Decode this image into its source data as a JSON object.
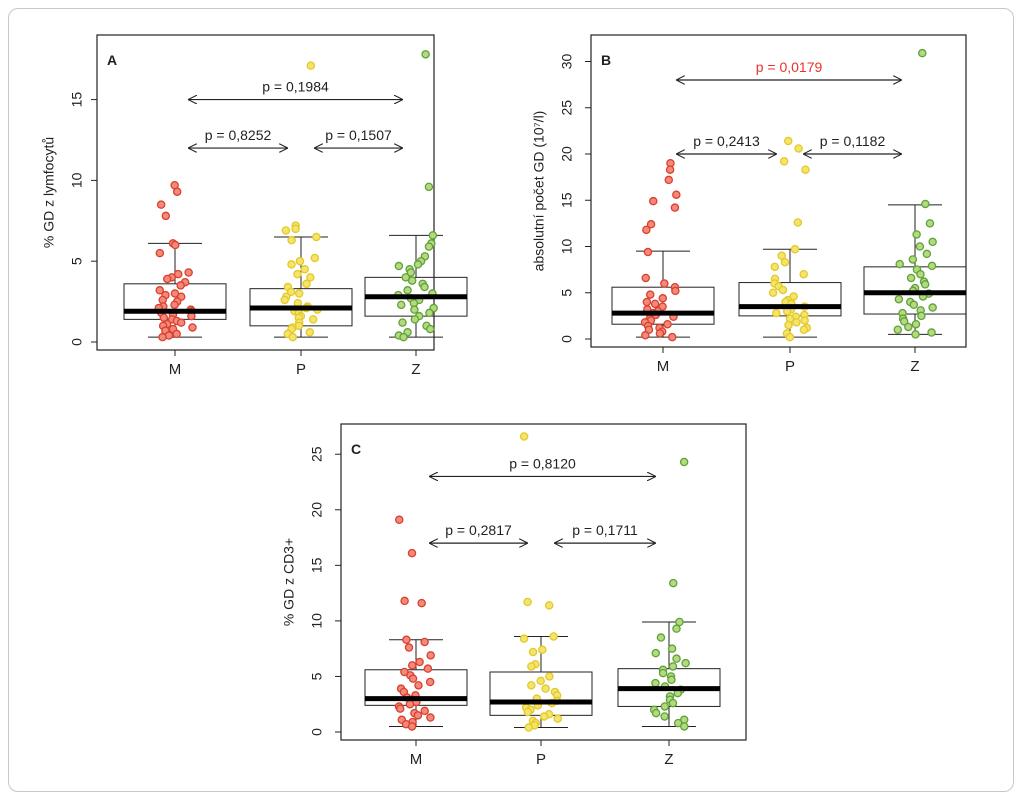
{
  "chart_data": [
    {
      "type": "box",
      "panel_label": "A",
      "ylabel": "% GD z lymfocytů",
      "categories": [
        "M",
        "P",
        "Z"
      ],
      "ylim": [
        0,
        18.5
      ],
      "yticks": [
        0,
        5,
        10,
        15
      ],
      "colors": {
        "fill": [
          "#f3897b",
          "#f5e46c",
          "#b5d97f"
        ],
        "stroke": [
          "#d9402e",
          "#e3c92a",
          "#5fa23a"
        ]
      },
      "boxes": [
        {
          "lower_whisker": 0.3,
          "q1": 1.4,
          "median": 1.9,
          "q3": 3.6,
          "upper_whisker": 6.1
        },
        {
          "lower_whisker": 0.3,
          "q1": 1.0,
          "median": 2.1,
          "q3": 3.3,
          "upper_whisker": 6.5
        },
        {
          "lower_whisker": 0.3,
          "q1": 1.6,
          "median": 2.8,
          "q3": 4.0,
          "upper_whisker": 6.6
        }
      ],
      "points": [
        [
          9.7,
          9.3,
          8.5,
          7.8,
          6.1,
          6.0,
          5.5,
          4.3,
          4.2,
          4.0,
          3.9,
          3.7,
          3.5,
          3.2,
          3.0,
          2.9,
          2.8,
          2.6,
          2.5,
          2.3,
          2.2,
          2.1,
          2.0,
          1.9,
          1.8,
          1.7,
          1.6,
          1.5,
          1.4,
          1.3,
          1.2,
          1.1,
          1.0,
          0.9,
          0.8,
          0.7,
          0.5,
          0.4,
          0.3
        ],
        [
          17.1,
          7.2,
          7.0,
          6.9,
          6.5,
          6.3,
          5.2,
          5.0,
          4.8,
          4.5,
          4.2,
          4.0,
          3.6,
          3.4,
          3.1,
          3.0,
          2.8,
          2.6,
          2.4,
          2.2,
          2.1,
          2.0,
          1.9,
          1.8,
          1.6,
          1.5,
          1.4,
          1.2,
          1.0,
          0.9,
          0.8,
          0.6,
          0.5,
          0.3
        ],
        [
          17.8,
          9.6,
          6.6,
          6.1,
          5.9,
          5.3,
          5.0,
          4.8,
          4.7,
          4.5,
          4.3,
          4.0,
          3.8,
          3.6,
          3.4,
          3.2,
          3.0,
          2.9,
          2.7,
          2.6,
          2.4,
          2.3,
          2.1,
          2.0,
          1.8,
          1.6,
          1.4,
          1.2,
          1.0,
          0.8,
          0.6,
          0.4,
          0.3
        ]
      ],
      "comparisons": [
        {
          "from": "M",
          "to": "Z",
          "label": "p = 0,1984",
          "y": 15.0,
          "highlight": false
        },
        {
          "from": "M",
          "to": "P",
          "label": "p = 0,8252",
          "y": 12.0,
          "highlight": false
        },
        {
          "from": "P",
          "to": "Z",
          "label": "p = 0,1507",
          "y": 12.0,
          "highlight": false
        }
      ]
    },
    {
      "type": "box",
      "panel_label": "B",
      "ylabel": "absolutní počet GD (10⁷/l)",
      "categories": [
        "M",
        "P",
        "Z"
      ],
      "ylim": [
        0,
        32
      ],
      "yticks": [
        0,
        5,
        10,
        15,
        20,
        25,
        30
      ],
      "colors": {
        "fill": [
          "#f3897b",
          "#f5e46c",
          "#b5d97f"
        ],
        "stroke": [
          "#d9402e",
          "#e3c92a",
          "#5fa23a"
        ]
      },
      "boxes": [
        {
          "lower_whisker": 0.2,
          "q1": 1.6,
          "median": 2.8,
          "q3": 5.6,
          "upper_whisker": 9.5
        },
        {
          "lower_whisker": 0.2,
          "q1": 2.5,
          "median": 3.5,
          "q3": 6.1,
          "upper_whisker": 9.7
        },
        {
          "lower_whisker": 0.5,
          "q1": 2.7,
          "median": 5.0,
          "q3": 7.8,
          "upper_whisker": 14.5
        }
      ],
      "points": [
        [
          19.0,
          18.3,
          17.2,
          15.6,
          14.9,
          14.2,
          12.4,
          11.8,
          9.4,
          6.6,
          6.0,
          5.6,
          5.2,
          4.8,
          4.4,
          4.0,
          3.8,
          3.5,
          3.2,
          3.0,
          2.8,
          2.6,
          2.4,
          2.2,
          2.0,
          1.8,
          1.6,
          1.4,
          1.2,
          1.0,
          0.8,
          0.6,
          0.4,
          0.2
        ],
        [
          21.4,
          20.6,
          19.2,
          18.3,
          12.6,
          9.7,
          9.0,
          8.3,
          7.8,
          7.0,
          6.5,
          6.0,
          5.7,
          5.3,
          5.0,
          4.6,
          4.2,
          4.0,
          3.8,
          3.5,
          3.2,
          3.0,
          2.8,
          2.6,
          2.4,
          2.2,
          2.0,
          1.8,
          1.5,
          1.2,
          1.0,
          0.6,
          0.2
        ],
        [
          30.9,
          14.6,
          12.5,
          11.3,
          10.5,
          10.0,
          9.2,
          8.6,
          8.1,
          7.9,
          7.5,
          7.0,
          6.6,
          6.2,
          5.9,
          5.5,
          5.2,
          4.9,
          4.6,
          4.3,
          4.0,
          3.7,
          3.4,
          3.1,
          2.8,
          2.5,
          2.2,
          1.9,
          1.6,
          1.3,
          1.0,
          0.7,
          0.5
        ]
      ],
      "comparisons": [
        {
          "from": "M",
          "to": "Z",
          "label": "p = 0,0179",
          "y": 28.0,
          "highlight": true
        },
        {
          "from": "M",
          "to": "P",
          "label": "p = 0,2413",
          "y": 20.0,
          "highlight": false
        },
        {
          "from": "P",
          "to": "Z",
          "label": "p = 0,1182",
          "y": 20.0,
          "highlight": false
        }
      ]
    },
    {
      "type": "box",
      "panel_label": "C",
      "ylabel": "% GD z CD3+",
      "categories": [
        "M",
        "P",
        "Z"
      ],
      "ylim": [
        0,
        27
      ],
      "yticks": [
        0,
        5,
        10,
        15,
        20,
        25
      ],
      "colors": {
        "fill": [
          "#f3897b",
          "#f5e46c",
          "#b5d97f"
        ],
        "stroke": [
          "#d9402e",
          "#e3c92a",
          "#5fa23a"
        ]
      },
      "boxes": [
        {
          "lower_whisker": 0.5,
          "q1": 2.4,
          "median": 3.0,
          "q3": 5.6,
          "upper_whisker": 8.3
        },
        {
          "lower_whisker": 0.4,
          "q1": 1.5,
          "median": 2.7,
          "q3": 5.4,
          "upper_whisker": 8.6
        },
        {
          "lower_whisker": 0.5,
          "q1": 2.3,
          "median": 3.9,
          "q3": 5.7,
          "upper_whisker": 9.9
        }
      ],
      "points": [
        [
          19.1,
          16.1,
          11.8,
          11.6,
          8.3,
          8.1,
          7.6,
          6.9,
          6.3,
          6.0,
          5.7,
          5.4,
          5.1,
          4.8,
          4.5,
          4.2,
          3.9,
          3.6,
          3.3,
          3.1,
          2.9,
          2.7,
          2.5,
          2.3,
          2.1,
          1.9,
          1.7,
          1.5,
          1.3,
          1.1,
          0.9,
          0.7,
          0.5
        ],
        [
          26.6,
          11.7,
          11.4,
          8.6,
          8.4,
          7.4,
          7.2,
          6.1,
          5.9,
          5.0,
          4.6,
          4.2,
          3.9,
          3.6,
          3.3,
          3.0,
          2.8,
          2.6,
          2.4,
          2.2,
          2.0,
          1.8,
          1.6,
          1.4,
          1.2,
          1.0,
          0.8,
          0.6,
          0.4
        ],
        [
          24.3,
          13.4,
          9.9,
          9.3,
          8.5,
          7.5,
          7.1,
          6.6,
          6.2,
          5.9,
          5.6,
          5.3,
          5.0,
          4.7,
          4.4,
          4.1,
          3.8,
          3.5,
          3.2,
          2.9,
          2.6,
          2.3,
          2.0,
          1.7,
          1.4,
          1.1,
          0.8,
          0.5
        ]
      ],
      "comparisons": [
        {
          "from": "M",
          "to": "Z",
          "label": "p = 0,8120",
          "y": 23.0,
          "highlight": false
        },
        {
          "from": "M",
          "to": "P",
          "label": "p = 0,2817",
          "y": 17.0,
          "highlight": false
        },
        {
          "from": "P",
          "to": "Z",
          "label": "p = 0,1711",
          "y": 17.0,
          "highlight": false
        }
      ]
    }
  ]
}
